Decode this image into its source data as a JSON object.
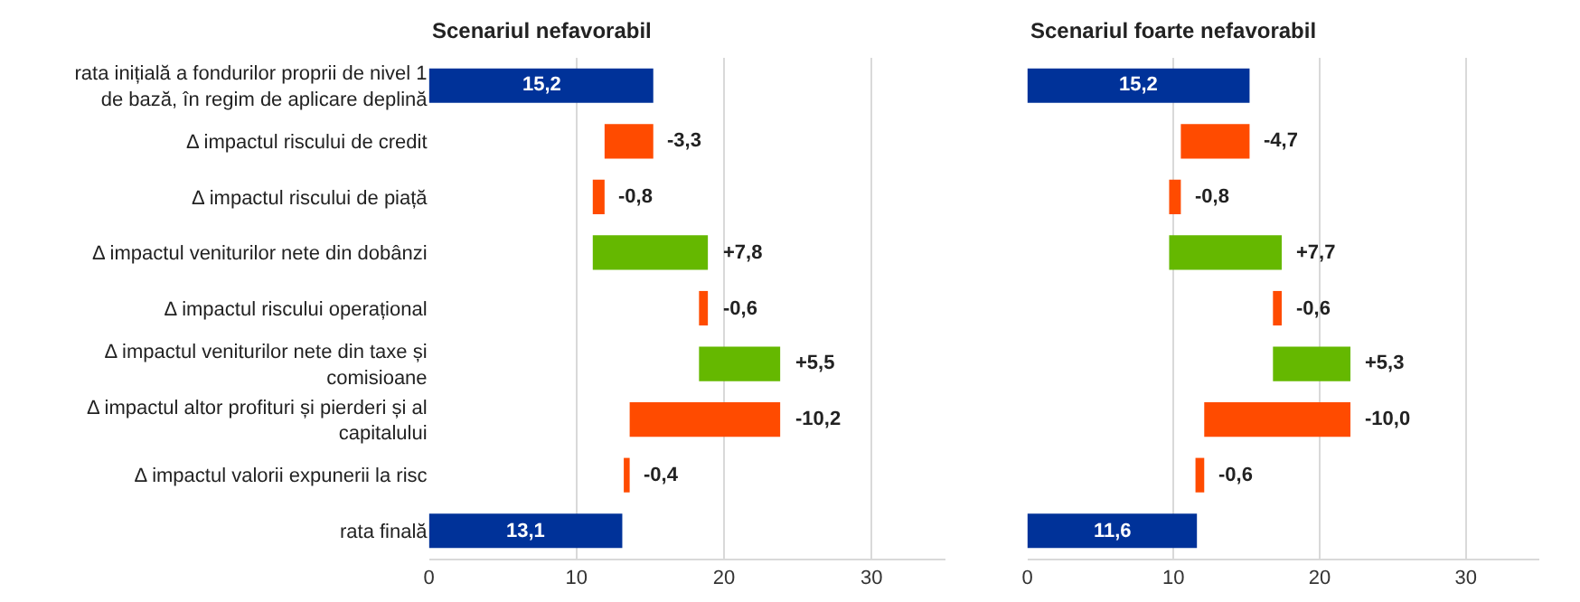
{
  "chart_data": [
    {
      "type": "bar",
      "orientation": "horizontal",
      "title": "Scenariul nefavorabil",
      "categories": [
        "rata inițială a fondurilor proprii de nivel 1 de bază, în regim de aplicare deplină",
        "Δ impactul riscului de credit",
        "Δ impactul riscului de piață",
        "Δ impactul veniturilor nete din dobânzi",
        "Δ impactul riscului operațional",
        "Δ impactul veniturilor nete din taxe și comisioane",
        "Δ impactul altor profituri și pierderi și al capitalului",
        "Δ impactul valorii expunerii la risc",
        "rata finală"
      ],
      "values": [
        15.2,
        -3.3,
        -0.8,
        7.8,
        -0.6,
        5.5,
        -10.2,
        -0.4,
        13.1
      ],
      "base": [
        0,
        15.2,
        11.9,
        11.1,
        18.9,
        18.3,
        23.8,
        13.6,
        0
      ],
      "colors": [
        "#003299",
        "#ff4b00",
        "#ff4b00",
        "#65b800",
        "#ff4b00",
        "#65b800",
        "#ff4b00",
        "#ff4b00",
        "#003299"
      ],
      "value_labels": [
        "15,2",
        "-3,3",
        "-0,8",
        "+7,8",
        "-0,6",
        "+5,5",
        "-10,2",
        "-0,4",
        "13,1"
      ],
      "xlim": [
        0,
        35
      ],
      "xticks": [
        0,
        10,
        20,
        30
      ],
      "grid": "x"
    },
    {
      "type": "bar",
      "orientation": "horizontal",
      "title": "Scenariul foarte nefavorabil",
      "categories": [
        "rata inițială a fondurilor proprii de nivel 1 de bază, în regim de aplicare deplină",
        "Δ impactul riscului de credit",
        "Δ impactul riscului de piață",
        "Δ impactul veniturilor nete din dobânzi",
        "Δ impactul riscului operațional",
        "Δ impactul veniturilor nete din taxe și comisioane",
        "Δ impactul altor profituri și pierderi și al capitalului",
        "Δ impactul valorii expunerii la risc",
        "rata finală"
      ],
      "values": [
        15.2,
        -4.7,
        -0.8,
        7.7,
        -0.6,
        5.3,
        -10.0,
        -0.6,
        11.6
      ],
      "base": [
        0,
        15.2,
        10.5,
        9.7,
        17.4,
        16.8,
        22.1,
        12.1,
        0
      ],
      "colors": [
        "#003299",
        "#ff4b00",
        "#ff4b00",
        "#65b800",
        "#ff4b00",
        "#65b800",
        "#ff4b00",
        "#ff4b00",
        "#003299"
      ],
      "value_labels": [
        "15,2",
        "-4,7",
        "-0,8",
        "+7,7",
        "-0,6",
        "+5,3",
        "-10,0",
        "-0,6",
        "11,6"
      ],
      "xlim": [
        0,
        35
      ],
      "xticks": [
        0,
        10,
        20,
        30
      ],
      "grid": "x",
      "tick_labels": "x"
    }
  ]
}
